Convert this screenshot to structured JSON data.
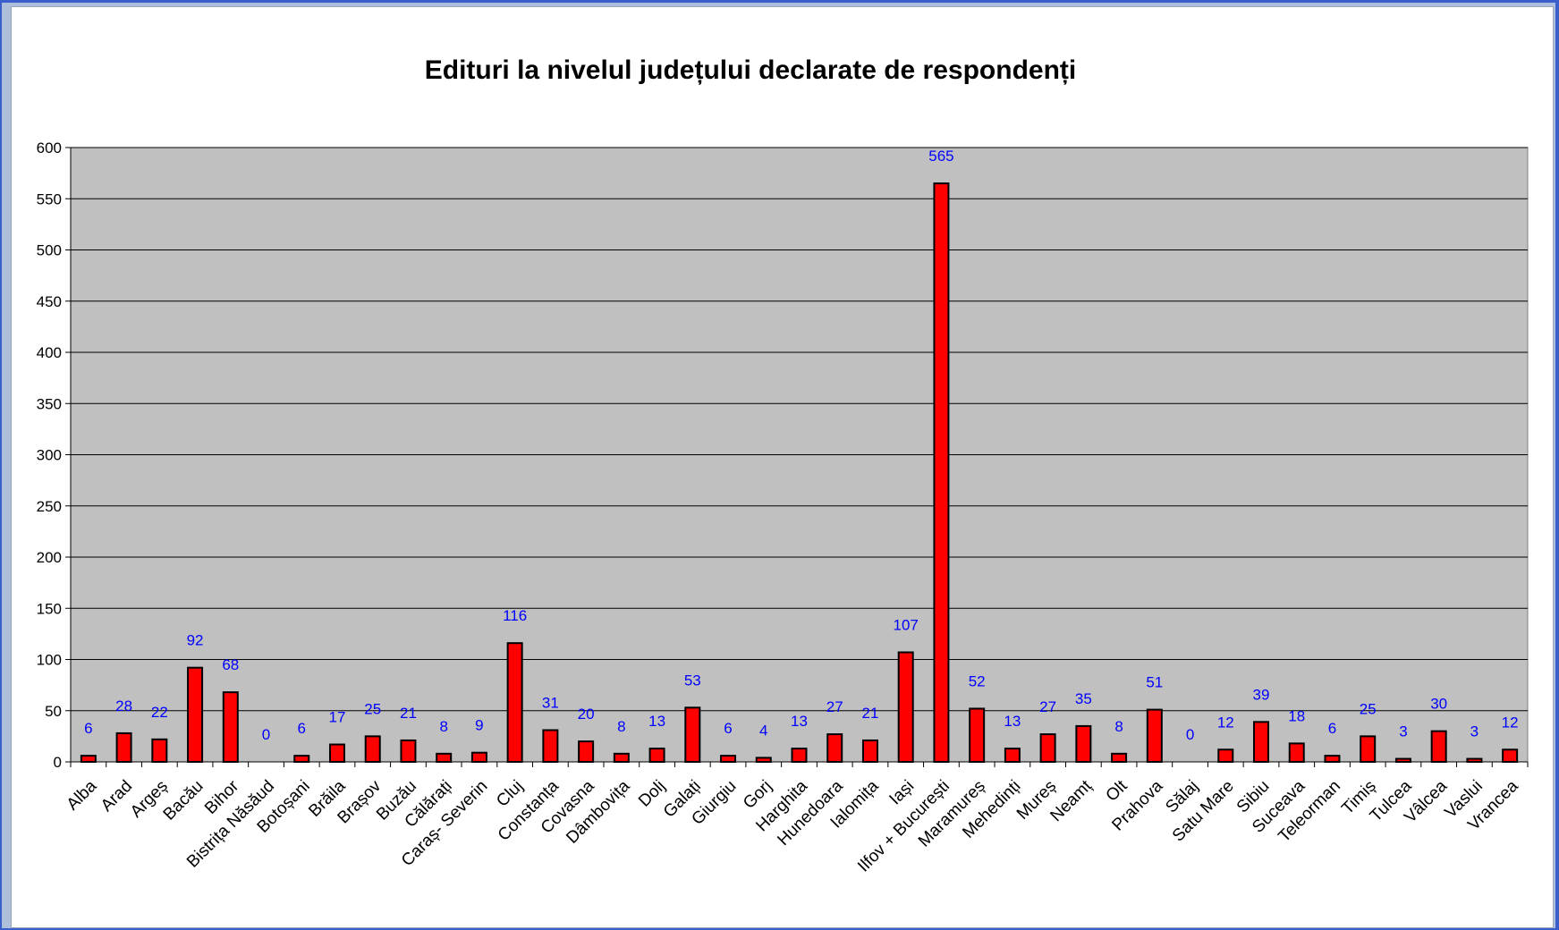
{
  "chart_data": {
    "type": "bar",
    "title": "Edituri la nivelul județului declarate de respondenți",
    "ylim": [
      0,
      600
    ],
    "yticks": [
      0,
      50,
      100,
      150,
      200,
      250,
      300,
      350,
      400,
      450,
      500,
      550,
      600
    ],
    "grid": true,
    "legend": "none",
    "categories": [
      "Alba",
      "Arad",
      "Argeș",
      "Bacău",
      "Bihor",
      "Bistrița Năsăud",
      "Botoșani",
      "Brăila",
      "Brașov",
      "Buzău",
      "Călărați",
      "Caraș- Severin",
      "Cluj",
      "Constanța",
      "Covasna",
      "Dâmbovița",
      "Dolj",
      "Galați",
      "Giurgiu",
      "Gorj",
      "Harghita",
      "Hunedoara",
      "Ialomița",
      "Iași",
      "Ilfov + București",
      "Maramureș",
      "Mehedinți",
      "Mureș",
      "Neamț",
      "Olt",
      "Prahova",
      "Sălaj",
      "Satu Mare",
      "Sibiu",
      "Suceava",
      "Teleorman",
      "Timiș",
      "Tulcea",
      "Vâlcea",
      "Vaslui",
      "Vrancea"
    ],
    "values": [
      6,
      28,
      22,
      92,
      68,
      0,
      6,
      17,
      25,
      21,
      8,
      9,
      116,
      31,
      20,
      8,
      13,
      53,
      6,
      4,
      13,
      27,
      21,
      107,
      565,
      52,
      13,
      27,
      35,
      8,
      51,
      0,
      12,
      39,
      18,
      6,
      25,
      3,
      30,
      3,
      12
    ]
  },
  "colors": {
    "bar_fill": "#ff0000",
    "bar_stroke": "#000000",
    "plot_bg": "#c0c0c0",
    "grid": "#000000",
    "value_label": "#0000ff",
    "frame": "#aebfdc",
    "border": "#3a5fcd"
  }
}
